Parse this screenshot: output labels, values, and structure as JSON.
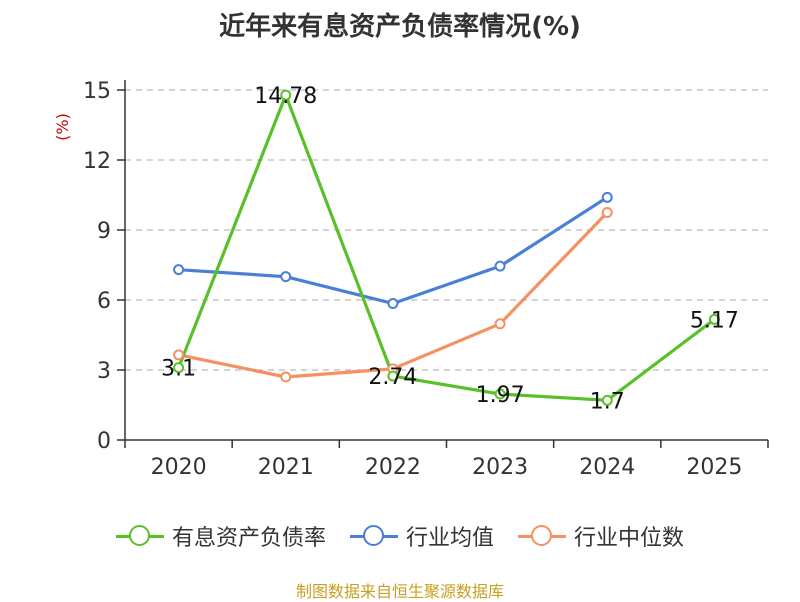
{
  "title": "近年来有息资产负债率情况(%)",
  "source_text": "制图数据来自恒生聚源数据库",
  "chart_data": {
    "type": "line",
    "title": "近年来有息资产负债率情况(%)",
    "ylabel": "(%)",
    "xlabel": "",
    "categories": [
      "2020",
      "2021",
      "2022",
      "2023",
      "2024",
      "2025"
    ],
    "ylim": [
      0,
      15
    ],
    "yticks": [
      0,
      3,
      6,
      9,
      12,
      15
    ],
    "grid": true,
    "legend_position": "bottom",
    "series": [
      {
        "name": "有息资产负债率",
        "color": "#5ac02a",
        "values": [
          3.1,
          14.78,
          2.74,
          1.97,
          1.7,
          5.17
        ],
        "labels": [
          "3.1",
          "14.78",
          "2.74",
          "1.97",
          "1.7",
          "5.17"
        ]
      },
      {
        "name": "行业均值",
        "color": "#4a7fd8",
        "values": [
          7.3,
          7.0,
          5.85,
          7.45,
          10.4,
          null
        ]
      },
      {
        "name": "行业中位数",
        "color": "#f59060",
        "values": [
          3.65,
          2.7,
          3.05,
          4.98,
          9.75,
          null
        ]
      }
    ]
  }
}
